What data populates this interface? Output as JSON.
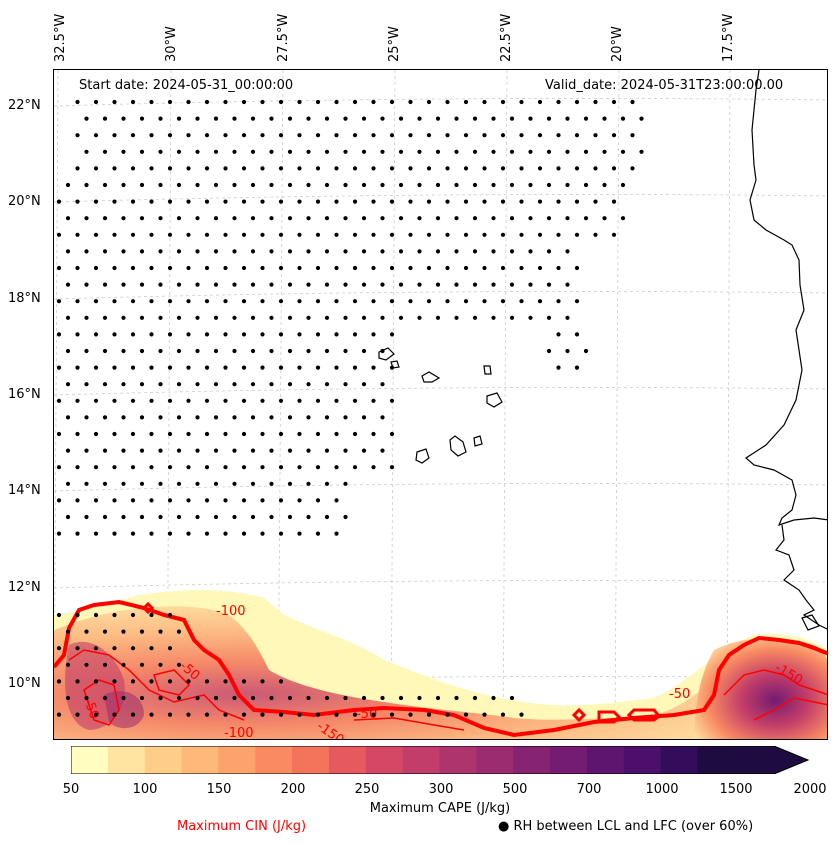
{
  "map": {
    "start_date": "Start date: 2024-05-31_00:00:00",
    "valid_date": "Valid_date: 2024-05-31T23:00:00.00",
    "lon_labels": [
      "32.5°W",
      "30°W",
      "27.5°W",
      "25°W",
      "22.5°W",
      "20°W",
      "17.5°W"
    ],
    "lat_labels": [
      "22°N",
      "20°N",
      "18°N",
      "16°N",
      "14°N",
      "12°N",
      "10°N"
    ],
    "cin_contour_labels": [
      "-100",
      "-50",
      "-150",
      "-50",
      "-100",
      "-50",
      "-150",
      "-50"
    ],
    "colors": {
      "cin_contour": "#ff0000",
      "coastline": "#000000",
      "gridline": "#cccccc",
      "stipple": "#000000"
    }
  },
  "colorbar": {
    "ticks": [
      "50",
      "100",
      "150",
      "200",
      "250",
      "300",
      "500",
      "700",
      "1000",
      "1500",
      "2000"
    ],
    "colors": [
      "#fffdbf",
      "#fee3a1",
      "#fecd8a",
      "#feb879",
      "#fca26c",
      "#f98a62",
      "#f3735b",
      "#e65a5f",
      "#d54865",
      "#c23d69",
      "#ad346d",
      "#9b2c6f",
      "#872471",
      "#731c72",
      "#5e1570",
      "#4a106b",
      "#330d5a",
      "#1e0b40"
    ],
    "label": "Maximum CAPE (J/kg)"
  },
  "legend": {
    "cin_label": "Maximum CIN (J/kg)",
    "rh_label": "● RH between LCL and LFC (over 60%)"
  }
}
